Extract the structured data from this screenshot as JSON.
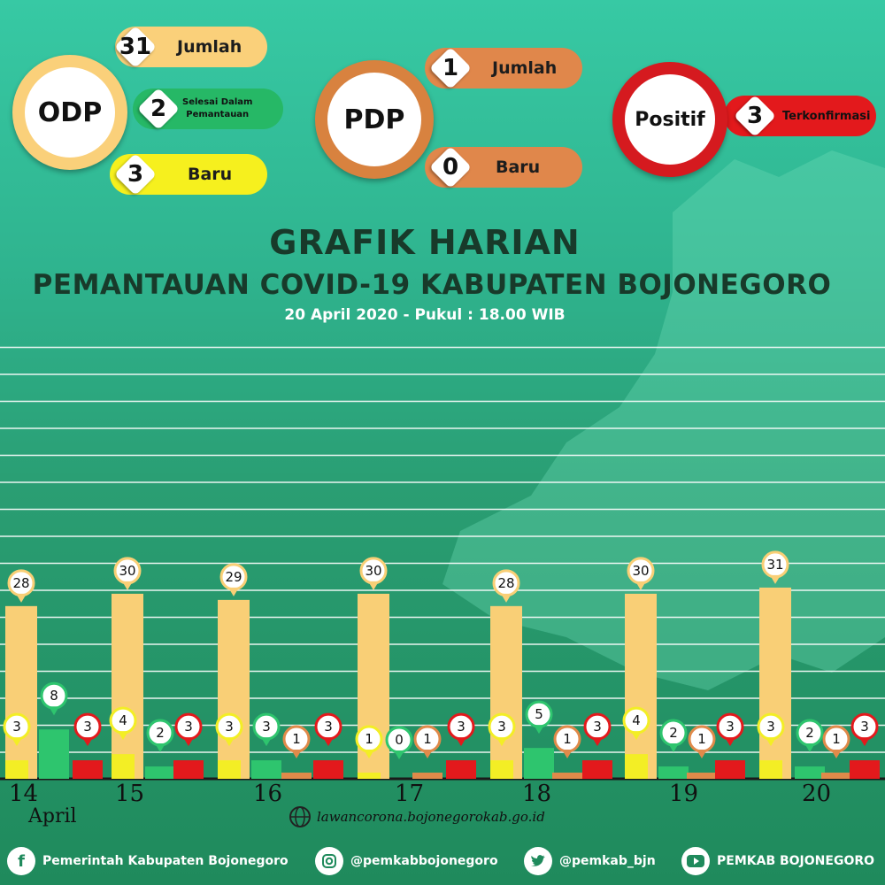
{
  "summary": {
    "odp": {
      "label": "ODP",
      "jumlah": "31",
      "jumlah_label": "Jumlah",
      "selesai": "2",
      "selesai_label_1": "Selesai Dalam",
      "selesai_label_2": "Pemantauan",
      "baru": "3",
      "baru_label": "Baru"
    },
    "pdp": {
      "label": "PDP",
      "jumlah": "1",
      "jumlah_label": "Jumlah",
      "baru": "0",
      "baru_label": "Baru"
    },
    "positif": {
      "label": "Positif",
      "value": "3",
      "value_label": "Terkonfirmasi"
    }
  },
  "heading": {
    "line1": "GRAFIK HARIAN",
    "line2": "PEMANTAUAN COVID-19 KABUPATEN BOJONEGORO",
    "line3": "20 April 2020 - Pukul : 18.00 WIB"
  },
  "chart_data": {
    "type": "bar",
    "categories": [
      "14",
      "15",
      "16",
      "17",
      "18",
      "19",
      "20"
    ],
    "month_label": "April",
    "series": [
      {
        "values": [
          28,
          30,
          29,
          30,
          28,
          30,
          31
        ],
        "color": "#f9cf76"
      },
      {
        "values": [
          3,
          4,
          3,
          1,
          3,
          4,
          3
        ],
        "color": "#f3ee25"
      },
      {
        "values": [
          8,
          2,
          3,
          0,
          5,
          2,
          2
        ],
        "color": "#2ec56e"
      },
      {
        "values": [
          null,
          null,
          1,
          1,
          1,
          1,
          1
        ],
        "color": "#e08a4a"
      },
      {
        "values": [
          3,
          3,
          3,
          3,
          3,
          3,
          3
        ],
        "color": "#e3191c"
      }
    ],
    "ylim": [
      0,
      43
    ],
    "grid": true
  },
  "footer": {
    "website": "lawancorona.bojonegorokab.go.id",
    "facebook": "Pemerintah Kabupaten Bojonegoro",
    "instagram": "@pemkabbojonegoro",
    "twitter": "@pemkab_bjn",
    "youtube": "PEMKAB BOJONEGORO"
  },
  "icons": [
    "globe-icon",
    "facebook-icon",
    "instagram-icon",
    "twitter-icon",
    "youtube-icon"
  ]
}
